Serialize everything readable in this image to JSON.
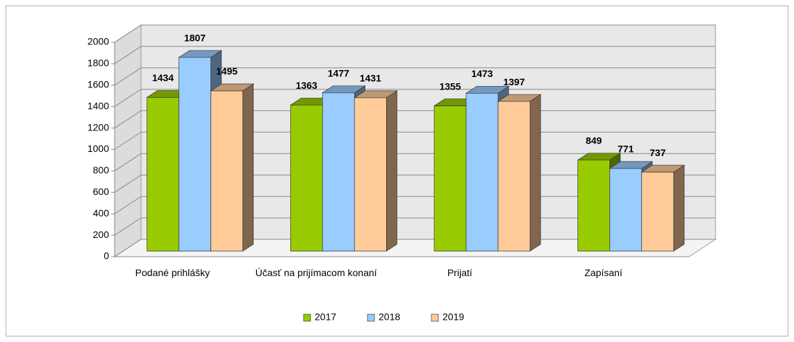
{
  "chart_data": {
    "type": "bar3d",
    "categories": [
      "Podané prihlášky",
      "Účasť na prijímacom konaní",
      "Prijatí",
      "Zapísaní"
    ],
    "series": [
      {
        "name": "2017",
        "color": "#99cc00",
        "values": [
          1434,
          1363,
          1355,
          849
        ]
      },
      {
        "name": "2018",
        "color": "#99ccff",
        "values": [
          1807,
          1477,
          1473,
          771
        ]
      },
      {
        "name": "2019",
        "color": "#ffcc99",
        "values": [
          1495,
          1431,
          1397,
          737
        ]
      }
    ],
    "ylim": [
      0,
      2000
    ],
    "yticks": [
      0,
      200,
      400,
      600,
      800,
      1000,
      1200,
      1400,
      1600,
      1800,
      2000
    ],
    "grid": true,
    "legend": "bottom"
  }
}
